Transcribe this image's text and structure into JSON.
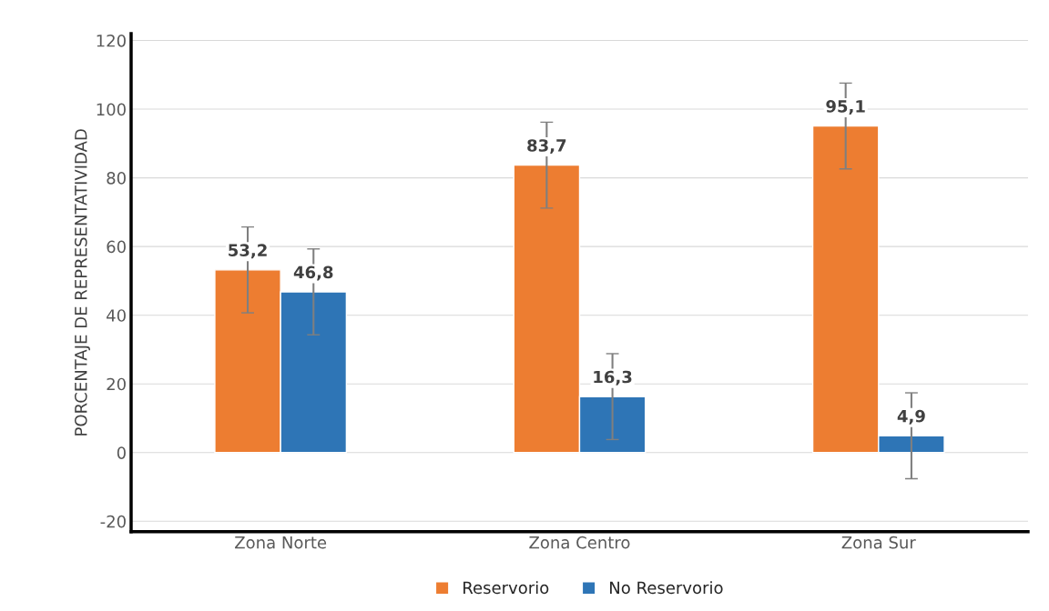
{
  "chart_data": {
    "type": "bar",
    "ylabel": "PORCENTAJE DE REPRESENTATIVIDAD",
    "categories": [
      "Zona Norte",
      "Zona Centro",
      "Zona Sur"
    ],
    "series": [
      {
        "name": "Reservorio",
        "color": "#ed7d31",
        "values": [
          53.2,
          83.7,
          95.1
        ],
        "value_labels": [
          "53,2",
          "83,7",
          "95,1"
        ],
        "errors": [
          12.5,
          12.5,
          12.5
        ]
      },
      {
        "name": "No Reservorio",
        "color": "#2e75b6",
        "values": [
          46.8,
          16.3,
          4.9
        ],
        "value_labels": [
          "46,8",
          "16,3",
          "4,9"
        ],
        "errors": [
          12.5,
          12.5,
          12.5
        ]
      }
    ],
    "ylim": [
      -23,
      122
    ],
    "yticks": [
      -20,
      0,
      20,
      40,
      60,
      80,
      100,
      120
    ],
    "grid": "y",
    "legend": "bottom"
  }
}
